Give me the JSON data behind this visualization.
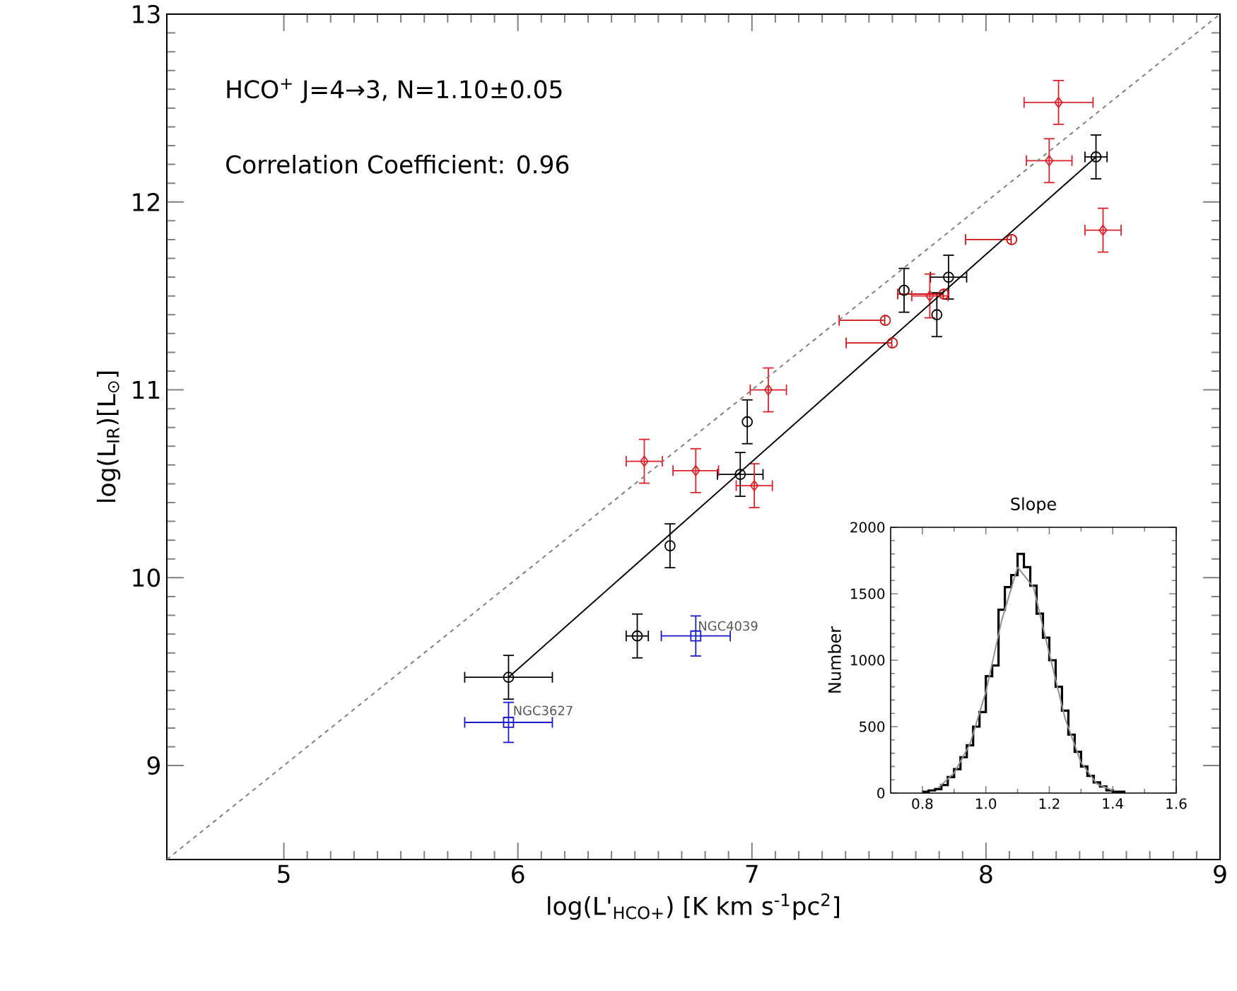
{
  "chart_data": [
    {
      "type": "scatter",
      "xlabel": "log(L'$_{HCO+}$) [K km s$^{-1}$pc$^{2}$]",
      "ylabel": "log(L$_{IR}$)[L$_{⊙}$]",
      "xlim": [
        4.5,
        9
      ],
      "ylim": [
        8.5,
        13
      ],
      "xticks": [
        5,
        6,
        7,
        8,
        9
      ],
      "yticks": [
        9,
        10,
        11,
        12,
        13
      ],
      "grid": false,
      "annotations": [
        "HCO$^{+}$ J=4→3, N=1.10±0.05",
        "Correlation Coefficient: 0.96",
        {
          "text": "NGC3627",
          "x": 5.97,
          "y": 9.33
        },
        {
          "text": "NGC4039",
          "x": 6.76,
          "y": 9.78
        }
      ],
      "series": [
        {
          "type": "scatter",
          "marker": "circle",
          "color": "#000000",
          "x": [
            5.96,
            6.51,
            6.65,
            6.95,
            6.98,
            7.65,
            7.79,
            7.84,
            8.47
          ],
          "values": [
            9.47,
            9.69,
            10.17,
            10.55,
            10.83,
            11.53,
            11.4,
            11.6,
            12.24
          ],
          "errors": [
            0.12,
            0.12,
            0.12,
            0.12,
            0.12,
            0.12,
            0.12,
            0.12,
            0.12
          ],
          "xerrors": [
            0.19,
            0.05,
            null,
            0.1,
            null,
            null,
            null,
            0.08,
            0.05
          ]
        },
        {
          "type": "scatter",
          "marker": "diamond",
          "color": "#e0202a",
          "x": [
            6.54,
            6.76,
            7.01,
            7.07,
            7.76,
            8.27,
            8.31,
            8.5
          ],
          "values": [
            10.62,
            10.57,
            10.49,
            11.0,
            11.5,
            12.22,
            12.53,
            11.85
          ],
          "errors": [
            0.12,
            0.12,
            0.12,
            0.12,
            0.12,
            0.12,
            0.12,
            0.12
          ],
          "xerrors": [
            0.08,
            0.1,
            0.08,
            0.08,
            0.08,
            0.1,
            0.15,
            0.08
          ]
        },
        {
          "type": "scatter",
          "marker": "circle",
          "color": "#d01010",
          "x": [
            7.57,
            7.6,
            7.82,
            8.11
          ],
          "values": [
            11.37,
            11.25,
            11.51,
            11.8
          ],
          "xerrors": [
            [
              7.37,
              7.57
            ],
            [
              7.4,
              7.6
            ],
            [
              7.62,
              7.82
            ],
            [
              7.91,
              8.11
            ]
          ]
        },
        {
          "type": "scatter",
          "marker": "square",
          "color": "#1a1acc",
          "x": [
            5.96,
            6.76
          ],
          "values": [
            9.23,
            9.69
          ],
          "errors": [
            0.11,
            0.11
          ],
          "xerrors": [
            0.19,
            0.15
          ]
        },
        {
          "type": "line",
          "color": "#000000",
          "x": [
            5.96,
            8.47
          ],
          "values": [
            9.47,
            12.24
          ]
        },
        {
          "type": "line",
          "color": "#808080",
          "line_style": "dashed",
          "x": [
            4.5,
            9
          ],
          "values": [
            8.5,
            13
          ]
        }
      ]
    },
    {
      "type": "histogram",
      "title": "Slope",
      "ylabel": "Number",
      "xlim": [
        0.7,
        1.6
      ],
      "ylim": [
        0,
        2000
      ],
      "xticks": [
        0.8,
        {
          "value": 1.0,
          "label": "1.0"
        },
        1.2,
        1.4,
        1.6
      ],
      "yticks": [
        0,
        500,
        1000,
        1500,
        2000
      ],
      "color": "#000000",
      "bins": [
        0.8,
        0.82,
        0.84,
        0.86,
        0.88,
        0.9,
        0.92,
        0.94,
        0.96,
        0.98,
        1.0,
        1.02,
        1.04,
        1.06,
        1.08,
        1.1,
        1.12,
        1.14,
        1.16,
        1.18,
        1.2,
        1.22,
        1.24,
        1.26,
        1.28,
        1.3,
        1.32,
        1.34,
        1.36,
        1.38,
        1.4,
        1.42,
        1.44
      ],
      "values": [
        10,
        20,
        30,
        60,
        120,
        180,
        270,
        360,
        500,
        610,
        880,
        960,
        1380,
        1550,
        1640,
        1800,
        1700,
        1560,
        1350,
        1170,
        1000,
        800,
        620,
        440,
        310,
        200,
        130,
        80,
        50,
        20,
        10,
        10
      ],
      "series": [
        {
          "type": "line",
          "color": "#909090",
          "x": [
            0.85,
            0.9,
            0.95,
            1.0,
            1.05,
            1.1,
            1.15,
            1.2,
            1.25,
            1.3,
            1.35,
            1.4
          ],
          "values": [
            40,
            150,
            370,
            760,
            1300,
            1700,
            1550,
            1050,
            560,
            230,
            70,
            20
          ]
        }
      ]
    }
  ]
}
